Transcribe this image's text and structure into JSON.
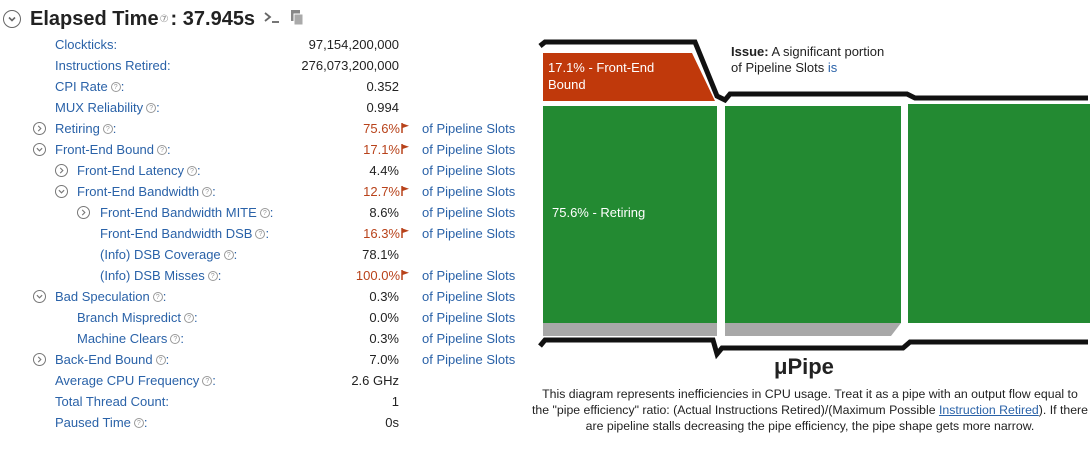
{
  "header": {
    "title": "Elapsed Time",
    "help_mark": "⑦",
    "value": ": 37.945s",
    "terminal_icon": ">_",
    "copy_icon": "copy"
  },
  "metrics": [
    {
      "label": "Clockticks:",
      "value": "97,154,200,000",
      "indent": 0,
      "expander": "none",
      "flag": false,
      "unit": ""
    },
    {
      "label": "Instructions Retired:",
      "value": "276,073,200,000",
      "indent": 0,
      "expander": "none",
      "flag": false,
      "unit": ""
    },
    {
      "label": "CPI Rate",
      "value": "0.352",
      "indent": 0,
      "expander": "none",
      "flag": false,
      "unit": "",
      "help": true
    },
    {
      "label": "MUX Reliability",
      "value": "0.994",
      "indent": 0,
      "expander": "none",
      "flag": false,
      "unit": "",
      "help": true
    },
    {
      "label": "Retiring",
      "value": "75.6%",
      "indent": 0,
      "expander": "collapsed",
      "flag": true,
      "unit": "of Pipeline Slots",
      "help": true
    },
    {
      "label": "Front-End Bound",
      "value": "17.1%",
      "indent": 0,
      "expander": "expanded",
      "flag": true,
      "unit": "of Pipeline Slots",
      "help": true
    },
    {
      "label": "Front-End Latency",
      "value": "4.4%",
      "indent": 1,
      "expander": "collapsed",
      "flag": false,
      "unit": "of Pipeline Slots",
      "help": true
    },
    {
      "label": "Front-End Bandwidth",
      "value": "12.7%",
      "indent": 1,
      "expander": "expanded",
      "flag": true,
      "unit": "of Pipeline Slots",
      "help": true
    },
    {
      "label": "Front-End Bandwidth MITE",
      "value": "8.6%",
      "indent": 2,
      "expander": "collapsed",
      "flag": false,
      "unit": "of Pipeline Slots",
      "help": true
    },
    {
      "label": "Front-End Bandwidth DSB",
      "value": "16.3%",
      "indent": 2,
      "expander": "none",
      "flag": true,
      "unit": "of Pipeline Slots",
      "help": true
    },
    {
      "label": "(Info) DSB Coverage",
      "value": "78.1%",
      "indent": 2,
      "expander": "none",
      "flag": false,
      "unit": "",
      "help": true
    },
    {
      "label": "(Info) DSB Misses",
      "value": "100.0%",
      "indent": 2,
      "expander": "none",
      "flag": true,
      "unit": "of Pipeline Slots",
      "help": true
    },
    {
      "label": "Bad Speculation",
      "value": "0.3%",
      "indent": 0,
      "expander": "expanded",
      "flag": false,
      "unit": "of Pipeline Slots",
      "help": true
    },
    {
      "label": "Branch Mispredict",
      "value": "0.0%",
      "indent": 1,
      "expander": "none",
      "flag": false,
      "unit": "of Pipeline Slots",
      "help": true
    },
    {
      "label": "Machine Clears",
      "value": "0.3%",
      "indent": 1,
      "expander": "none",
      "flag": false,
      "unit": "of Pipeline Slots",
      "help": true
    },
    {
      "label": "Back-End Bound",
      "value": "7.0%",
      "indent": 0,
      "expander": "collapsed",
      "flag": false,
      "unit": "of Pipeline Slots",
      "help": true
    },
    {
      "label": "Average CPU Frequency",
      "value": "2.6 GHz",
      "indent": 0,
      "expander": "none",
      "flag": false,
      "unit": "",
      "help": true
    },
    {
      "label": "Total Thread Count:",
      "value": "1",
      "indent": 0,
      "expander": "none",
      "flag": false,
      "unit": ""
    },
    {
      "label": "Paused Time",
      "value": "0s",
      "indent": 0,
      "expander": "none",
      "flag": false,
      "unit": "",
      "help": true
    }
  ],
  "pipe": {
    "front_end_label_line1": "17.1% - Front-End",
    "front_end_label_line2": "Bound",
    "retiring_label": "75.6% - Retiring",
    "front_end_pct": 17.1,
    "retiring_pct": 75.6,
    "bad_speculation_pct": 0.3,
    "back_end_pct": 7.0,
    "colors": {
      "front_end": "#c0390b",
      "retiring": "#238a32",
      "bad_spec": "#a8a8a8",
      "outline": "#111111"
    }
  },
  "issue": {
    "heading": "Issue:",
    "text1": " A significant portion",
    "text2": "of Pipeline Slots",
    "text3": " is"
  },
  "mupipe": {
    "title": "μPipe",
    "desc_part1": "This diagram represents inefficiencies in CPU usage. Treat it as a pipe with an output flow equal to the \"pipe efficiency\" ratio: (Actual Instructions Retired)/(Maximum Possible ",
    "desc_link": "Instruction Retired",
    "desc_part2": "). If there are pipeline stalls decreasing the pipe efficiency, the pipe shape gets more narrow."
  }
}
